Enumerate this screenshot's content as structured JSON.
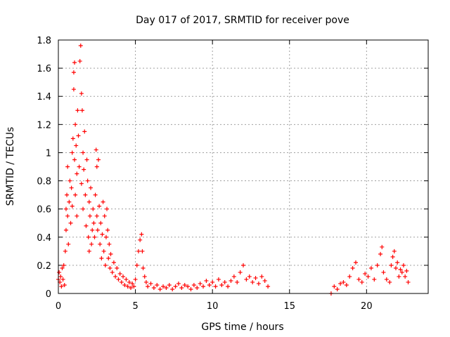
{
  "chart_data": {
    "type": "scatter",
    "title": "Day 017 of 2017, SRMTID for receiver pove",
    "xlabel": "GPS time / hours",
    "ylabel": "SRMTID / TECUs",
    "xlim": [
      0,
      24
    ],
    "ylim": [
      0,
      1.8
    ],
    "xticks": [
      0,
      5,
      10,
      15,
      20
    ],
    "yticks": [
      0,
      0.2,
      0.4,
      0.6,
      0.8,
      1,
      1.2,
      1.4,
      1.6,
      1.8
    ],
    "xtick_labels": [
      "0",
      "5",
      "10",
      "15",
      "20"
    ],
    "ytick_labels": [
      "0",
      "0.2",
      "0.4",
      "0.6",
      "0.8",
      "1",
      "1.2",
      "1.4",
      "1.6",
      "1.8"
    ],
    "grid": true,
    "marker": "plus",
    "color": "#ff0000",
    "series": [
      {
        "name": "SRMTID",
        "points": [
          [
            0.0,
            0.1
          ],
          [
            0.05,
            0.15
          ],
          [
            0.1,
            0.08
          ],
          [
            0.15,
            0.12
          ],
          [
            0.2,
            0.05
          ],
          [
            0.25,
            0.18
          ],
          [
            0.3,
            0.1
          ],
          [
            0.35,
            0.2
          ],
          [
            0.4,
            0.06
          ],
          [
            0.45,
            0.3
          ],
          [
            0.5,
            0.45
          ],
          [
            0.5,
            0.6
          ],
          [
            0.55,
            0.7
          ],
          [
            0.6,
            0.9
          ],
          [
            0.6,
            0.55
          ],
          [
            0.65,
            0.35
          ],
          [
            0.7,
            0.65
          ],
          [
            0.75,
            0.8
          ],
          [
            0.8,
            0.5
          ],
          [
            0.85,
            0.75
          ],
          [
            0.9,
            1.0
          ],
          [
            0.9,
            0.62
          ],
          [
            0.95,
            1.1
          ],
          [
            1.0,
            1.45
          ],
          [
            1.0,
            1.57
          ],
          [
            1.05,
            1.64
          ],
          [
            1.05,
            0.95
          ],
          [
            1.1,
            1.2
          ],
          [
            1.1,
            0.7
          ],
          [
            1.15,
            1.05
          ],
          [
            1.2,
            0.85
          ],
          [
            1.2,
            0.55
          ],
          [
            1.25,
            1.3
          ],
          [
            1.3,
            1.12
          ],
          [
            1.35,
            0.9
          ],
          [
            1.4,
            1.65
          ],
          [
            1.45,
            1.76
          ],
          [
            1.5,
            1.42
          ],
          [
            1.5,
            0.78
          ],
          [
            1.55,
            1.3
          ],
          [
            1.6,
            1.0
          ],
          [
            1.6,
            0.6
          ],
          [
            1.65,
            0.88
          ],
          [
            1.7,
            1.15
          ],
          [
            1.75,
            0.7
          ],
          [
            1.8,
            0.48
          ],
          [
            1.85,
            0.95
          ],
          [
            1.9,
            0.8
          ],
          [
            1.95,
            0.4
          ],
          [
            2.0,
            0.3
          ],
          [
            2.0,
            0.65
          ],
          [
            2.05,
            0.55
          ],
          [
            2.1,
            0.75
          ],
          [
            2.15,
            0.35
          ],
          [
            2.2,
            0.45
          ],
          [
            2.25,
            0.6
          ],
          [
            2.3,
            0.5
          ],
          [
            2.35,
            0.4
          ],
          [
            2.4,
            0.7
          ],
          [
            2.45,
            1.02
          ],
          [
            2.5,
            0.9
          ],
          [
            2.5,
            0.55
          ],
          [
            2.55,
            0.45
          ],
          [
            2.6,
            0.95
          ],
          [
            2.65,
            0.62
          ],
          [
            2.7,
            0.35
          ],
          [
            2.75,
            0.5
          ],
          [
            2.8,
            0.25
          ],
          [
            2.85,
            0.42
          ],
          [
            2.9,
            0.65
          ],
          [
            2.95,
            0.3
          ],
          [
            3.0,
            0.55
          ],
          [
            3.05,
            0.2
          ],
          [
            3.1,
            0.4
          ],
          [
            3.15,
            0.6
          ],
          [
            3.2,
            0.45
          ],
          [
            3.25,
            0.25
          ],
          [
            3.3,
            0.35
          ],
          [
            3.35,
            0.18
          ],
          [
            3.4,
            0.28
          ],
          [
            3.5,
            0.15
          ],
          [
            3.6,
            0.22
          ],
          [
            3.7,
            0.12
          ],
          [
            3.8,
            0.18
          ],
          [
            3.9,
            0.1
          ],
          [
            4.0,
            0.14
          ],
          [
            4.1,
            0.08
          ],
          [
            4.2,
            0.12
          ],
          [
            4.3,
            0.06
          ],
          [
            4.4,
            0.1
          ],
          [
            4.5,
            0.05
          ],
          [
            4.6,
            0.08
          ],
          [
            4.7,
            0.04
          ],
          [
            4.8,
            0.07
          ],
          [
            4.9,
            0.05
          ],
          [
            5.0,
            0.1
          ],
          [
            5.1,
            0.2
          ],
          [
            5.2,
            0.3
          ],
          [
            5.3,
            0.38
          ],
          [
            5.4,
            0.42
          ],
          [
            5.45,
            0.3
          ],
          [
            5.5,
            0.18
          ],
          [
            5.6,
            0.12
          ],
          [
            5.7,
            0.08
          ],
          [
            5.8,
            0.05
          ],
          [
            6.0,
            0.07
          ],
          [
            6.2,
            0.04
          ],
          [
            6.4,
            0.06
          ],
          [
            6.6,
            0.03
          ],
          [
            6.8,
            0.05
          ],
          [
            7.0,
            0.04
          ],
          [
            7.2,
            0.06
          ],
          [
            7.4,
            0.03
          ],
          [
            7.6,
            0.05
          ],
          [
            7.8,
            0.07
          ],
          [
            8.0,
            0.04
          ],
          [
            8.2,
            0.06
          ],
          [
            8.4,
            0.05
          ],
          [
            8.6,
            0.03
          ],
          [
            8.8,
            0.06
          ],
          [
            9.0,
            0.04
          ],
          [
            9.2,
            0.07
          ],
          [
            9.4,
            0.05
          ],
          [
            9.6,
            0.09
          ],
          [
            9.8,
            0.06
          ],
          [
            10.0,
            0.08
          ],
          [
            10.2,
            0.05
          ],
          [
            10.4,
            0.1
          ],
          [
            10.6,
            0.06
          ],
          [
            10.8,
            0.08
          ],
          [
            11.0,
            0.05
          ],
          [
            11.2,
            0.09
          ],
          [
            11.4,
            0.12
          ],
          [
            11.6,
            0.08
          ],
          [
            11.8,
            0.15
          ],
          [
            12.0,
            0.2
          ],
          [
            12.2,
            0.1
          ],
          [
            12.4,
            0.12
          ],
          [
            12.6,
            0.08
          ],
          [
            12.8,
            0.11
          ],
          [
            13.0,
            0.07
          ],
          [
            13.2,
            0.12
          ],
          [
            13.4,
            0.09
          ],
          [
            13.6,
            0.05
          ],
          [
            17.7,
            0.0
          ],
          [
            17.9,
            0.05
          ],
          [
            18.1,
            0.03
          ],
          [
            18.3,
            0.07
          ],
          [
            18.5,
            0.08
          ],
          [
            18.7,
            0.06
          ],
          [
            18.9,
            0.12
          ],
          [
            19.1,
            0.18
          ],
          [
            19.3,
            0.22
          ],
          [
            19.5,
            0.1
          ],
          [
            19.7,
            0.08
          ],
          [
            19.9,
            0.14
          ],
          [
            20.1,
            0.12
          ],
          [
            20.3,
            0.18
          ],
          [
            20.5,
            0.1
          ],
          [
            20.7,
            0.2
          ],
          [
            20.9,
            0.28
          ],
          [
            21.0,
            0.33
          ],
          [
            21.1,
            0.15
          ],
          [
            21.3,
            0.1
          ],
          [
            21.5,
            0.08
          ],
          [
            21.6,
            0.2
          ],
          [
            21.7,
            0.26
          ],
          [
            21.8,
            0.3
          ],
          [
            21.9,
            0.18
          ],
          [
            22.0,
            0.22
          ],
          [
            22.1,
            0.12
          ],
          [
            22.2,
            0.17
          ],
          [
            22.3,
            0.15
          ],
          [
            22.4,
            0.2
          ],
          [
            22.5,
            0.12
          ],
          [
            22.6,
            0.16
          ],
          [
            22.7,
            0.08
          ]
        ]
      }
    ]
  }
}
